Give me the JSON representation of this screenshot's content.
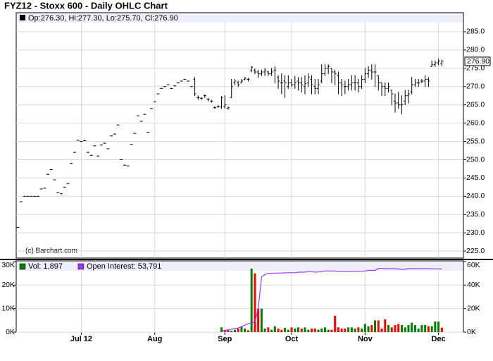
{
  "chart_data": [
    {
      "type": "ohlc",
      "title": "FYZ12 - Stoxx 600 - Daily OHLC Chart",
      "legend": "Op:276.30, Hi:277.30, Lo:275.70, Cl:276.90",
      "watermark": "(c) Barchart.com",
      "last_label": "276.90",
      "color": "#000000",
      "grid": true,
      "categories": [
        null,
        null,
        null,
        null,
        null,
        null,
        null,
        null,
        null,
        null,
        null,
        null,
        null,
        null,
        null,
        null,
        null,
        null,
        null,
        "Jul 12",
        null,
        null,
        null,
        null,
        null,
        null,
        null,
        null,
        null,
        null,
        null,
        null,
        null,
        null,
        null,
        null,
        null,
        null,
        null,
        null,
        null,
        "Aug",
        null,
        null,
        null,
        null,
        null,
        null,
        null,
        null,
        null,
        null,
        null,
        null,
        null,
        null,
        null,
        null,
        null,
        null,
        null,
        null,
        "Sep",
        null,
        null,
        null,
        null,
        null,
        null,
        null,
        null,
        null,
        null,
        null,
        null,
        null,
        null,
        null,
        null,
        null,
        null,
        null,
        "Oct",
        null,
        null,
        null,
        null,
        null,
        null,
        null,
        null,
        null,
        null,
        null,
        null,
        null,
        null,
        null,
        null,
        null,
        null,
        null,
        null,
        null,
        "Nov",
        null,
        null,
        null,
        null,
        null,
        null,
        null,
        null,
        null,
        null,
        null,
        null,
        null,
        null,
        null,
        null,
        null,
        null,
        null,
        null,
        null,
        "Dec",
        null
      ],
      "open": [
        231.5,
        238.5,
        240,
        240,
        240,
        240,
        240,
        242,
        242.2,
        246,
        247.3,
        244.5,
        241,
        240.7,
        242.5,
        243.5,
        249,
        252,
        255.3,
        255,
        255.2,
        252,
        251.2,
        253.8,
        251,
        254,
        254.5,
        253,
        256.5,
        257,
        259.5,
        250,
        248.5,
        248.3,
        254.2,
        257.2,
        262,
        260.5,
        262.4,
        257.5,
        264,
        265.8,
        268,
        269.5,
        270,
        270.5,
        269.5,
        270.2,
        271,
        271.5,
        272,
        271.5,
        270,
        272,
        267,
        266.8,
        267.5,
        266.5,
        266,
        264.3,
        264.5,
        264.5,
        264.5,
        264,
        267,
        271,
        271,
        271,
        272,
        272,
        274.5,
        274.5,
        274,
        273.5,
        274,
        274,
        273.5,
        274.5,
        272.5,
        271,
        271.5,
        270,
        271,
        270.5,
        271.5,
        271,
        270,
        271,
        272,
        270,
        269.5,
        271.5,
        273.5,
        275,
        275,
        274,
        273,
        271,
        270,
        270,
        270.5,
        271,
        271,
        270,
        272,
        273.5,
        274.5,
        274,
        273,
        271,
        270,
        269.5,
        269,
        266,
        265.5,
        265,
        266,
        267.5,
        268.5,
        270.5,
        271,
        271.5,
        271.5,
        272,
        275.5,
        276,
        276.5,
        276.3
      ],
      "high": [
        231.5,
        238.5,
        240,
        240,
        240,
        240,
        240,
        242,
        242.2,
        246,
        247.3,
        244.5,
        241,
        240.7,
        242.5,
        243.5,
        249,
        252,
        255.3,
        255,
        255.2,
        252,
        251.2,
        253.8,
        251,
        254,
        254.5,
        253,
        256.5,
        257,
        259.5,
        250,
        248.5,
        248.3,
        254.2,
        257.2,
        262,
        260.5,
        262.4,
        257.5,
        264,
        265.8,
        268,
        269.5,
        270,
        270.5,
        269.5,
        270.2,
        271,
        271.5,
        272,
        271.5,
        270,
        272.5,
        267.5,
        267,
        267.8,
        266.8,
        266.3,
        264.5,
        264.8,
        267.3,
        267.5,
        264.5,
        272,
        272,
        271.5,
        272,
        272.5,
        272.3,
        275.5,
        274.8,
        274.5,
        274.5,
        275,
        274.2,
        275,
        275.5,
        273,
        273.5,
        273,
        273,
        272,
        272.8,
        272.5,
        272.5,
        273,
        273.5,
        273,
        272,
        272,
        276,
        276,
        276,
        275,
        274.5,
        274,
        272,
        271.5,
        272,
        273,
        273,
        272,
        273,
        275,
        275.5,
        276,
        276,
        273,
        271,
        271,
        271,
        269,
        268,
        268.5,
        267.5,
        269,
        269,
        272.5,
        272,
        272,
        272,
        273,
        272.5,
        277,
        277,
        277.5,
        277.3
      ],
      "low": [
        231.5,
        238.5,
        240,
        240,
        240,
        240,
        240,
        242,
        242.2,
        246,
        247.3,
        244.5,
        241,
        240.7,
        242.5,
        243.5,
        249,
        252,
        255.3,
        255,
        255.2,
        252,
        251.2,
        253.8,
        251,
        254,
        254.5,
        253,
        256.5,
        257,
        259.5,
        250,
        248.5,
        248.3,
        254.2,
        257.2,
        262,
        260.5,
        262.4,
        257.5,
        264,
        265.8,
        268,
        269.5,
        270,
        270.5,
        269.5,
        270.2,
        271,
        271.5,
        272,
        271.5,
        270,
        267.5,
        266.5,
        266.5,
        267,
        266,
        265.7,
        264,
        264.3,
        264,
        264,
        263.8,
        267,
        270.5,
        270,
        271,
        271.8,
        271.5,
        274,
        273.5,
        272.5,
        273,
        273,
        273,
        273,
        271,
        269.5,
        268,
        267,
        269.5,
        270,
        269.5,
        269,
        268.5,
        268,
        270,
        268,
        268,
        268,
        271,
        273,
        273.5,
        271,
        270.5,
        268,
        267.5,
        268,
        269,
        269,
        269,
        268.5,
        269.5,
        271,
        272.5,
        272,
        270,
        269,
        267.5,
        267.5,
        268.5,
        265,
        263,
        264,
        262.5,
        265,
        265.5,
        268,
        270,
        270,
        271,
        270,
        270,
        275.5,
        275.5,
        276,
        275.7
      ],
      "close": [
        231.5,
        238.5,
        240,
        240,
        240,
        240,
        240,
        242,
        242.2,
        246,
        247.3,
        244.5,
        241,
        240.7,
        242.5,
        243.5,
        249,
        252,
        255.3,
        255,
        255.2,
        252,
        251.2,
        253.8,
        251,
        254,
        254.5,
        253,
        256.5,
        257,
        259.5,
        250,
        248.5,
        248.3,
        254.2,
        257.2,
        262,
        260.5,
        262.4,
        257.5,
        264,
        265.8,
        268,
        269.5,
        270,
        270.5,
        269.5,
        270.2,
        271,
        271.5,
        272,
        271.5,
        270,
        268,
        267,
        266.8,
        267.5,
        266.5,
        266,
        264.2,
        264.5,
        267,
        265,
        264.2,
        270,
        271.5,
        270.5,
        271.5,
        272.3,
        272,
        275.3,
        274,
        273.5,
        274,
        274.5,
        273.5,
        274,
        274.5,
        271.5,
        271,
        271,
        271,
        270.5,
        271,
        271,
        270.5,
        270.8,
        272.5,
        270.5,
        269.5,
        270.5,
        273.5,
        275,
        275.5,
        274,
        273.5,
        271,
        270.5,
        270,
        270.5,
        271,
        271,
        270,
        272,
        273.5,
        274.5,
        274,
        274,
        271,
        270,
        269.5,
        270,
        268,
        265.5,
        265,
        265,
        267.5,
        268,
        270.5,
        271,
        271,
        271.5,
        272,
        271.5,
        276,
        276.5,
        277,
        276.9
      ],
      "ylim": [
        223.1,
        290.2
      ],
      "yticks": [
        {
          "value": 225,
          "label": "225.0"
        },
        {
          "value": 230,
          "label": "230.0"
        },
        {
          "value": 235,
          "label": "235.0"
        },
        {
          "value": 240,
          "label": "240.0"
        },
        {
          "value": 245,
          "label": "245.0"
        },
        {
          "value": 250,
          "label": "250.0"
        },
        {
          "value": 255,
          "label": "255.0"
        },
        {
          "value": 260,
          "label": "260.0"
        },
        {
          "value": 265,
          "label": "265.0"
        },
        {
          "value": 270,
          "label": "270.0"
        },
        {
          "value": 275,
          "label": "275.0"
        },
        {
          "value": 280,
          "label": "280.0"
        },
        {
          "value": 285,
          "label": "285.0"
        }
      ]
    },
    {
      "type": "volume",
      "grid": true,
      "ylim": [
        0,
        30000
      ],
      "yticks": [
        {
          "value": 0,
          "label": "0K"
        },
        {
          "value": 10000,
          "label": "10K"
        },
        {
          "value": 20000,
          "label": "20K"
        },
        {
          "value": 30000,
          "label": "30K"
        }
      ],
      "y2lim": [
        0,
        60000
      ],
      "y2ticks": [
        {
          "value": 0,
          "label": "0K"
        },
        {
          "value": 20000,
          "label": "20K"
        },
        {
          "value": 40000,
          "label": "40K"
        },
        {
          "value": 60000,
          "label": "60K"
        }
      ],
      "series": [
        {
          "name": "Vol: 1,897",
          "color": "#008000",
          "down_color": "#ff0000",
          "values": [
            null,
            null,
            null,
            null,
            null,
            null,
            null,
            null,
            null,
            null,
            null,
            null,
            null,
            null,
            null,
            null,
            null,
            null,
            null,
            null,
            null,
            null,
            null,
            null,
            null,
            null,
            null,
            null,
            null,
            null,
            null,
            null,
            null,
            null,
            null,
            null,
            null,
            null,
            null,
            null,
            null,
            null,
            null,
            null,
            null,
            null,
            null,
            null,
            null,
            null,
            null,
            null,
            null,
            null,
            null,
            null,
            null,
            null,
            null,
            null,
            null,
            2000,
            600,
            800,
            600,
            1000,
            1500,
            2500,
            1500,
            800,
            27000,
            25000,
            10000,
            10000,
            1500,
            2000,
            1000,
            2500,
            1500,
            1000,
            1800,
            1000,
            2000,
            1500,
            2000,
            1500,
            2000,
            1000,
            1500,
            1500,
            1000,
            1500,
            2000,
            1000,
            1000,
            7000,
            2000,
            1500,
            1500,
            2000,
            2000,
            1500,
            2000,
            1500,
            3500,
            2500,
            3000,
            5000,
            5000,
            1500,
            5500,
            3000,
            2000,
            3000,
            3500,
            3000,
            2000,
            3000,
            4000,
            3000,
            1500,
            3000,
            3000,
            2500,
            2500,
            4500,
            4500,
            1897
          ]
        },
        {
          "name": "Open Interest: 53,791",
          "color": "#9933ff",
          "axis": "y2",
          "values": [
            null,
            null,
            null,
            null,
            null,
            null,
            null,
            null,
            null,
            null,
            null,
            null,
            null,
            null,
            null,
            null,
            null,
            null,
            null,
            null,
            null,
            null,
            null,
            null,
            null,
            null,
            null,
            null,
            null,
            null,
            null,
            null,
            null,
            null,
            null,
            null,
            null,
            null,
            null,
            null,
            null,
            null,
            null,
            null,
            null,
            null,
            null,
            null,
            null,
            null,
            null,
            null,
            null,
            null,
            null,
            null,
            null,
            null,
            null,
            null,
            null,
            1000,
            1500,
            2000,
            2500,
            3000,
            3500,
            4500,
            6000,
            7000,
            8000,
            8500,
            20000,
            47000,
            49000,
            50000,
            50000,
            50200,
            50200,
            50300,
            50400,
            50500,
            50500,
            50500,
            51000,
            51000,
            51000,
            51500,
            51500,
            51000,
            51200,
            51500,
            52000,
            52000,
            52000,
            52000,
            51500,
            51500,
            51500,
            51500,
            51500,
            51700,
            51800,
            51800,
            52000,
            52500,
            52500,
            52500,
            54200,
            54200,
            54000,
            54000,
            54000,
            54000,
            53700,
            53300,
            53500,
            54000,
            54000,
            54000,
            54000,
            54000,
            54000,
            54000,
            53800,
            53800,
            53800,
            53791
          ]
        }
      ]
    }
  ]
}
